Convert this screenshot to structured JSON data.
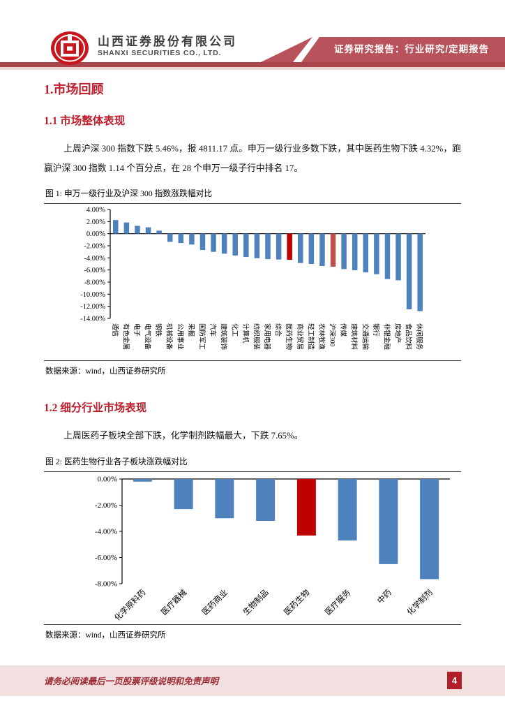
{
  "header": {
    "company_cn": "山西证券股份有限公司",
    "company_en": "SHANXI SECURITIES CO., LTD.",
    "banner": "证券研究报告：行业研究/定期报告"
  },
  "sections": {
    "h1": "1.市场回顾",
    "s11_title": "1.1 市场整体表现",
    "s11_para": "上周沪深 300 指数下跌 5.46%，报 4811.17 点。申万一级行业多数下跌，其中医药生物下跌 4.32%，跑赢沪深 300 指数 1.14 个百分点，在 28 个申万一级子行中排名 17。",
    "s12_title": "1.2 细分行业市场表现",
    "s12_para": "上周医药子板块全部下跌，化学制剂跌幅最大，下跌 7.65%。"
  },
  "figure1": {
    "caption": "图 1: 申万一级行业及沪深 300 指数涨跌幅对比",
    "source": "数据来源：wind，山西证券研究所"
  },
  "figure2": {
    "caption": "图 2: 医药生物行业各子板块涨跌幅对比",
    "source": "数据来源：wind，山西证券研究所"
  },
  "footer": {
    "disclaimer": "请务必阅读最后一页股票评级说明和免责声明",
    "page_number": "4"
  },
  "colors": {
    "bar_blue": "#4f81bd",
    "highlight_red": "#c00000",
    "highlight_red_muted": "#c0504d",
    "heading_red": "#bf1e2c",
    "banner_red": "#b9535b",
    "footer_pink": "#f2dfdf"
  },
  "chart_data": [
    {
      "type": "bar",
      "title": "申万一级行业及沪深300指数涨跌幅对比",
      "categories": [
        "通信",
        "有色金属",
        "电子",
        "电气设备",
        "钢铁",
        "机械设备",
        "公用事业",
        "采掘",
        "国防军工",
        "汽车",
        "建筑装饰",
        "化工",
        "计算机",
        "纺织服装",
        "家用电器",
        "综合",
        "医药生物",
        "商业贸易",
        "轻工制造",
        "农林牧渔",
        "沪深300",
        "传媒",
        "建筑材料",
        "交通运输",
        "银行",
        "非银金融",
        "房地产",
        "食品饮料",
        "休闲服务"
      ],
      "values": [
        2.25,
        1.85,
        1.3,
        1.05,
        0.5,
        -1.35,
        -1.55,
        -1.8,
        -2.7,
        -3.0,
        -3.3,
        -3.6,
        -3.85,
        -4.05,
        -4.2,
        -4.27,
        -4.32,
        -4.85,
        -5.0,
        -5.35,
        -5.46,
        -5.85,
        -6.05,
        -6.4,
        -6.7,
        -7.5,
        -7.7,
        -12.5,
        -12.8
      ],
      "bar_color": "#4f81bd",
      "highlight": {
        "16": "#c00000",
        "20": "#c0504d"
      },
      "ylim": [
        -14,
        4
      ],
      "ytick": 2,
      "tick_suffix": "%",
      "grid": false,
      "legend": false,
      "xlabel": "",
      "ylabel": ""
    },
    {
      "type": "bar",
      "title": "医药生物行业各子板块涨跌幅对比",
      "categories": [
        "化学原料药",
        "医疗器械",
        "医药商业",
        "生物制品",
        "医药生物",
        "医疗服务",
        "中药",
        "化学制剂"
      ],
      "values": [
        -0.2,
        -2.3,
        -3.0,
        -3.2,
        -4.32,
        -4.7,
        -6.5,
        -7.65
      ],
      "bar_color": "#4f81bd",
      "highlight": {
        "4": "#c00000"
      },
      "ylim": [
        -8,
        0
      ],
      "ytick": 2,
      "tick_suffix": "%",
      "grid": false,
      "legend": false,
      "xlabel": "",
      "ylabel": ""
    }
  ]
}
